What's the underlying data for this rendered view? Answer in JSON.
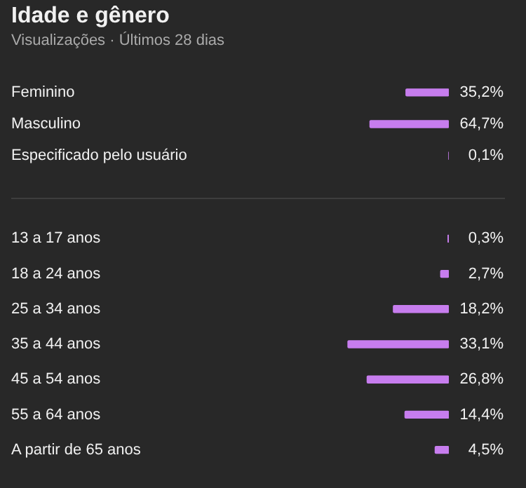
{
  "chart_data": [
    {
      "type": "bar",
      "title": "Idade e gênero",
      "subtitle": "Visualizações · Últimos 28 dias",
      "orientation": "horizontal",
      "categories": [
        "Feminino",
        "Masculino",
        "Especificado pelo usuário"
      ],
      "values": [
        35.2,
        64.7,
        0.1
      ],
      "value_labels": [
        "35,2%",
        "64,7%",
        "0,1%"
      ],
      "color": "#c77dee",
      "tick_labels": "y"
    },
    {
      "type": "bar",
      "orientation": "horizontal",
      "categories": [
        "13 a 17 anos",
        "18 a 24 anos",
        "25 a 34 anos",
        "35 a 44 anos",
        "45 a 54 anos",
        "55 a 64 anos",
        "A partir de 65 anos"
      ],
      "values": [
        0.3,
        2.7,
        18.2,
        33.1,
        26.8,
        14.4,
        4.5
      ],
      "value_labels": [
        "0,3%",
        "2,7%",
        "18,2%",
        "33,1%",
        "26,8%",
        "14,4%",
        "4,5%"
      ],
      "color": "#c77dee",
      "tick_labels": "y"
    }
  ]
}
